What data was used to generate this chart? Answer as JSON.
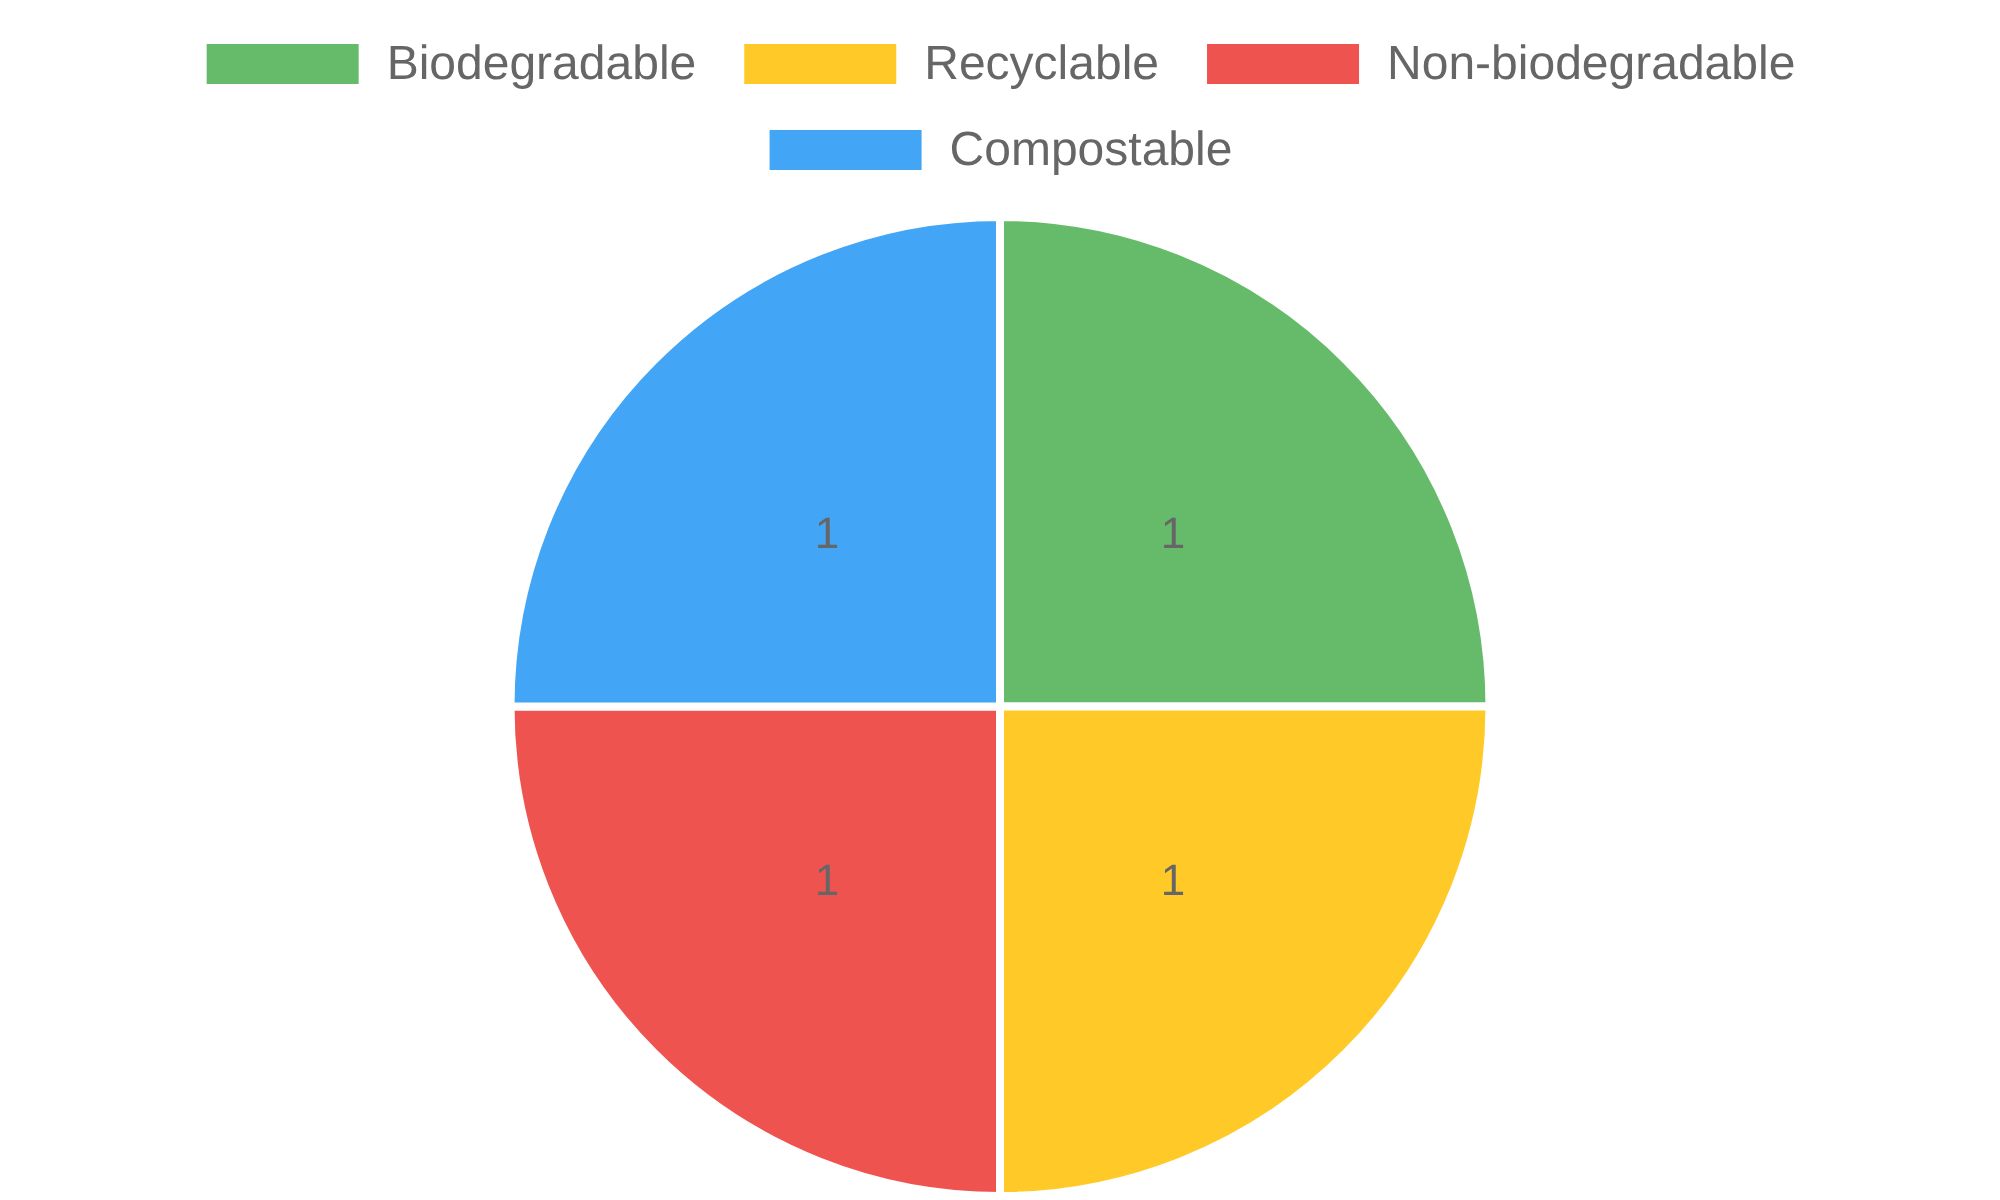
{
  "chart_data": {
    "type": "pie",
    "categories": [
      "Biodegradable",
      "Recyclable",
      "Non-biodegradable",
      "Compostable"
    ],
    "values": [
      1,
      1,
      1,
      1
    ],
    "colors": [
      "#66bb6a",
      "#ffca28",
      "#ef5350",
      "#42a5f5"
    ],
    "legend": "top",
    "data_labels": true
  }
}
